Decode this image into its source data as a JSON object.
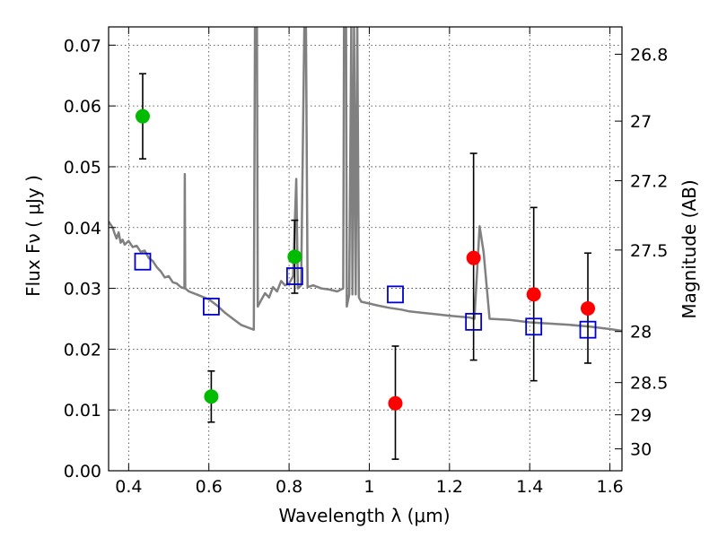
{
  "chart_data": {
    "type": "scatter",
    "title": "",
    "xlabel": "Wavelength  λ (μm)",
    "ylabel": "Flux  Fν  ( μJy )",
    "y2label": "Magnitude (AB)",
    "xlim": [
      0.35,
      1.63
    ],
    "ylim": [
      0.0,
      0.073
    ],
    "grid": true,
    "x_ticks": [
      0.4,
      0.6,
      0.8,
      1.0,
      1.2,
      1.4,
      1.6
    ],
    "x_tick_labels": [
      "0.4",
      "0.6",
      "0.8",
      "1",
      "1.2",
      "1.4",
      "1.6"
    ],
    "y_ticks": [
      0.0,
      0.01,
      0.02,
      0.03,
      0.04,
      0.05,
      0.06,
      0.07
    ],
    "y_tick_labels": [
      "0.00",
      "0.01",
      "0.02",
      "0.03",
      "0.04",
      "0.05",
      "0.06",
      "0.07"
    ],
    "y2_ticks": [
      {
        "flux": 0.0685,
        "label": "26.8"
      },
      {
        "flux": 0.0575,
        "label": "27"
      },
      {
        "flux": 0.0477,
        "label": "27.2"
      },
      {
        "flux": 0.0363,
        "label": "27.5"
      },
      {
        "flux": 0.0229,
        "label": "28"
      },
      {
        "flux": 0.0145,
        "label": "28.5"
      },
      {
        "flux": 0.0092,
        "label": "29"
      },
      {
        "flux": 0.0036,
        "label": "30"
      }
    ],
    "colors": {
      "model": "#808080",
      "green_points": "#00bb00",
      "red_points": "#ff0000",
      "squares": "#0000cc",
      "errorbars": "#000000"
    },
    "series": [
      {
        "marker": "circle",
        "color": "#00bb00",
        "points": [
          {
            "x": 0.435,
            "y": 0.0583,
            "err_low": 0.007,
            "err_high": 0.007
          },
          {
            "x": 0.606,
            "y": 0.0122,
            "err_low": 0.0042,
            "err_high": 0.0042
          },
          {
            "x": 0.814,
            "y": 0.0352,
            "err_low": 0.006,
            "err_high": 0.006
          }
        ]
      },
      {
        "marker": "circle",
        "color": "#ff0000",
        "points": [
          {
            "x": 1.065,
            "y": 0.0111,
            "err_low": 0.0092,
            "err_high": 0.0094
          },
          {
            "x": 1.26,
            "y": 0.035,
            "err_low": 0.0168,
            "err_high": 0.0172
          },
          {
            "x": 1.41,
            "y": 0.029,
            "err_low": 0.0142,
            "err_high": 0.0143
          },
          {
            "x": 1.545,
            "y": 0.0267,
            "err_low": 0.009,
            "err_high": 0.0091
          }
        ]
      },
      {
        "marker": "square",
        "color": "#0000cc",
        "points": [
          {
            "x": 0.435,
            "y": 0.0344
          },
          {
            "x": 0.606,
            "y": 0.027
          },
          {
            "x": 0.814,
            "y": 0.032
          },
          {
            "x": 1.065,
            "y": 0.029
          },
          {
            "x": 1.26,
            "y": 0.0245
          },
          {
            "x": 1.41,
            "y": 0.0237
          },
          {
            "x": 1.545,
            "y": 0.0232
          }
        ]
      }
    ],
    "model_spectrum": [
      [
        0.35,
        0.041
      ],
      [
        0.36,
        0.04
      ],
      [
        0.365,
        0.039
      ],
      [
        0.37,
        0.0382
      ],
      [
        0.375,
        0.0392
      ],
      [
        0.38,
        0.0375
      ],
      [
        0.385,
        0.038
      ],
      [
        0.39,
        0.0372
      ],
      [
        0.4,
        0.0378
      ],
      [
        0.41,
        0.0368
      ],
      [
        0.42,
        0.037
      ],
      [
        0.43,
        0.036
      ],
      [
        0.44,
        0.0362
      ],
      [
        0.45,
        0.035
      ],
      [
        0.46,
        0.0345
      ],
      [
        0.47,
        0.0335
      ],
      [
        0.48,
        0.0328
      ],
      [
        0.49,
        0.0318
      ],
      [
        0.5,
        0.032
      ],
      [
        0.51,
        0.031
      ],
      [
        0.52,
        0.0308
      ],
      [
        0.53,
        0.0302
      ],
      [
        0.539,
        0.03
      ],
      [
        0.54,
        0.0488
      ],
      [
        0.541,
        0.03
      ],
      [
        0.55,
        0.0295
      ],
      [
        0.57,
        0.029
      ],
      [
        0.6,
        0.0282
      ],
      [
        0.62,
        0.0272
      ],
      [
        0.64,
        0.026
      ],
      [
        0.66,
        0.025
      ],
      [
        0.68,
        0.024
      ],
      [
        0.7,
        0.0235
      ],
      [
        0.712,
        0.0232
      ],
      [
        0.715,
        0.073
      ],
      [
        0.72,
        0.073
      ],
      [
        0.722,
        0.027
      ],
      [
        0.73,
        0.028
      ],
      [
        0.74,
        0.0292
      ],
      [
        0.75,
        0.0285
      ],
      [
        0.76,
        0.0302
      ],
      [
        0.77,
        0.0295
      ],
      [
        0.78,
        0.0312
      ],
      [
        0.79,
        0.0305
      ],
      [
        0.8,
        0.0308
      ],
      [
        0.81,
        0.032
      ],
      [
        0.818,
        0.048
      ],
      [
        0.822,
        0.03
      ],
      [
        0.83,
        0.0305
      ],
      [
        0.838,
        0.073
      ],
      [
        0.842,
        0.073
      ],
      [
        0.846,
        0.0302
      ],
      [
        0.86,
        0.0305
      ],
      [
        0.88,
        0.03
      ],
      [
        0.9,
        0.0298
      ],
      [
        0.92,
        0.0295
      ],
      [
        0.935,
        0.03
      ],
      [
        0.937,
        0.073
      ],
      [
        0.942,
        0.073
      ],
      [
        0.944,
        0.027
      ],
      [
        0.95,
        0.029
      ],
      [
        0.955,
        0.073
      ],
      [
        0.958,
        0.029
      ],
      [
        0.962,
        0.073
      ],
      [
        0.966,
        0.029
      ],
      [
        0.97,
        0.073
      ],
      [
        0.974,
        0.0285
      ],
      [
        0.98,
        0.0278
      ],
      [
        1.0,
        0.0275
      ],
      [
        1.02,
        0.0272
      ],
      [
        1.05,
        0.0268
      ],
      [
        1.08,
        0.0265
      ],
      [
        1.1,
        0.0262
      ],
      [
        1.13,
        0.026
      ],
      [
        1.16,
        0.0258
      ],
      [
        1.2,
        0.0255
      ],
      [
        1.25,
        0.0252
      ],
      [
        1.262,
        0.025
      ],
      [
        1.275,
        0.0402
      ],
      [
        1.285,
        0.036
      ],
      [
        1.3,
        0.025
      ],
      [
        1.35,
        0.0248
      ],
      [
        1.4,
        0.0244
      ],
      [
        1.45,
        0.0242
      ],
      [
        1.5,
        0.024
      ],
      [
        1.55,
        0.0237
      ],
      [
        1.6,
        0.0233
      ],
      [
        1.63,
        0.023
      ]
    ]
  }
}
